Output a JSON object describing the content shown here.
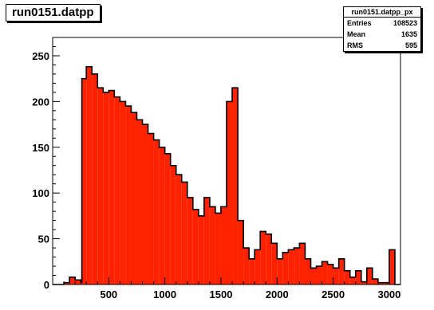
{
  "title": "run0151.datpp",
  "stats": {
    "name": "run0151.datpp_px",
    "rows": [
      {
        "label": "Entries",
        "value": "108523"
      },
      {
        "label": "Mean",
        "value": "1635"
      },
      {
        "label": "RMS",
        "value": "595"
      }
    ]
  },
  "colors": {
    "fill": "#ff2200",
    "outline": "#000000",
    "frame_bg": "#ffffff"
  },
  "chart_data": {
    "type": "area",
    "title": "run0151.datpp",
    "xlabel": "",
    "ylabel": "",
    "xlim": [
      0,
      3100
    ],
    "ylim": [
      0,
      270
    ],
    "grid": false,
    "x_ticks": [
      500,
      1000,
      1500,
      2000,
      2500,
      3000
    ],
    "y_ticks": [
      0,
      50,
      100,
      150,
      200,
      250
    ],
    "x": [
      0,
      50,
      100,
      150,
      200,
      250,
      260,
      300,
      350,
      400,
      450,
      500,
      550,
      600,
      650,
      700,
      750,
      800,
      850,
      900,
      950,
      1000,
      1050,
      1100,
      1150,
      1200,
      1250,
      1300,
      1350,
      1400,
      1450,
      1500,
      1550,
      1600,
      1650,
      1700,
      1750,
      1800,
      1850,
      1900,
      1950,
      2000,
      2050,
      2100,
      2150,
      2200,
      2250,
      2300,
      2350,
      2400,
      2450,
      2500,
      2550,
      2600,
      2650,
      2700,
      2750,
      2800,
      2850,
      2900,
      2950,
      3000,
      3050
    ],
    "values": [
      0,
      0,
      2,
      8,
      5,
      2,
      225,
      238,
      230,
      215,
      210,
      212,
      205,
      200,
      195,
      188,
      180,
      175,
      165,
      158,
      150,
      143,
      130,
      120,
      112,
      95,
      82,
      75,
      95,
      85,
      78,
      85,
      200,
      215,
      70,
      40,
      28,
      38,
      58,
      55,
      45,
      28,
      35,
      38,
      40,
      45,
      28,
      18,
      20,
      25,
      22,
      18,
      28,
      15,
      8,
      15,
      3,
      18,
      6,
      2,
      2,
      38,
      0
    ]
  }
}
